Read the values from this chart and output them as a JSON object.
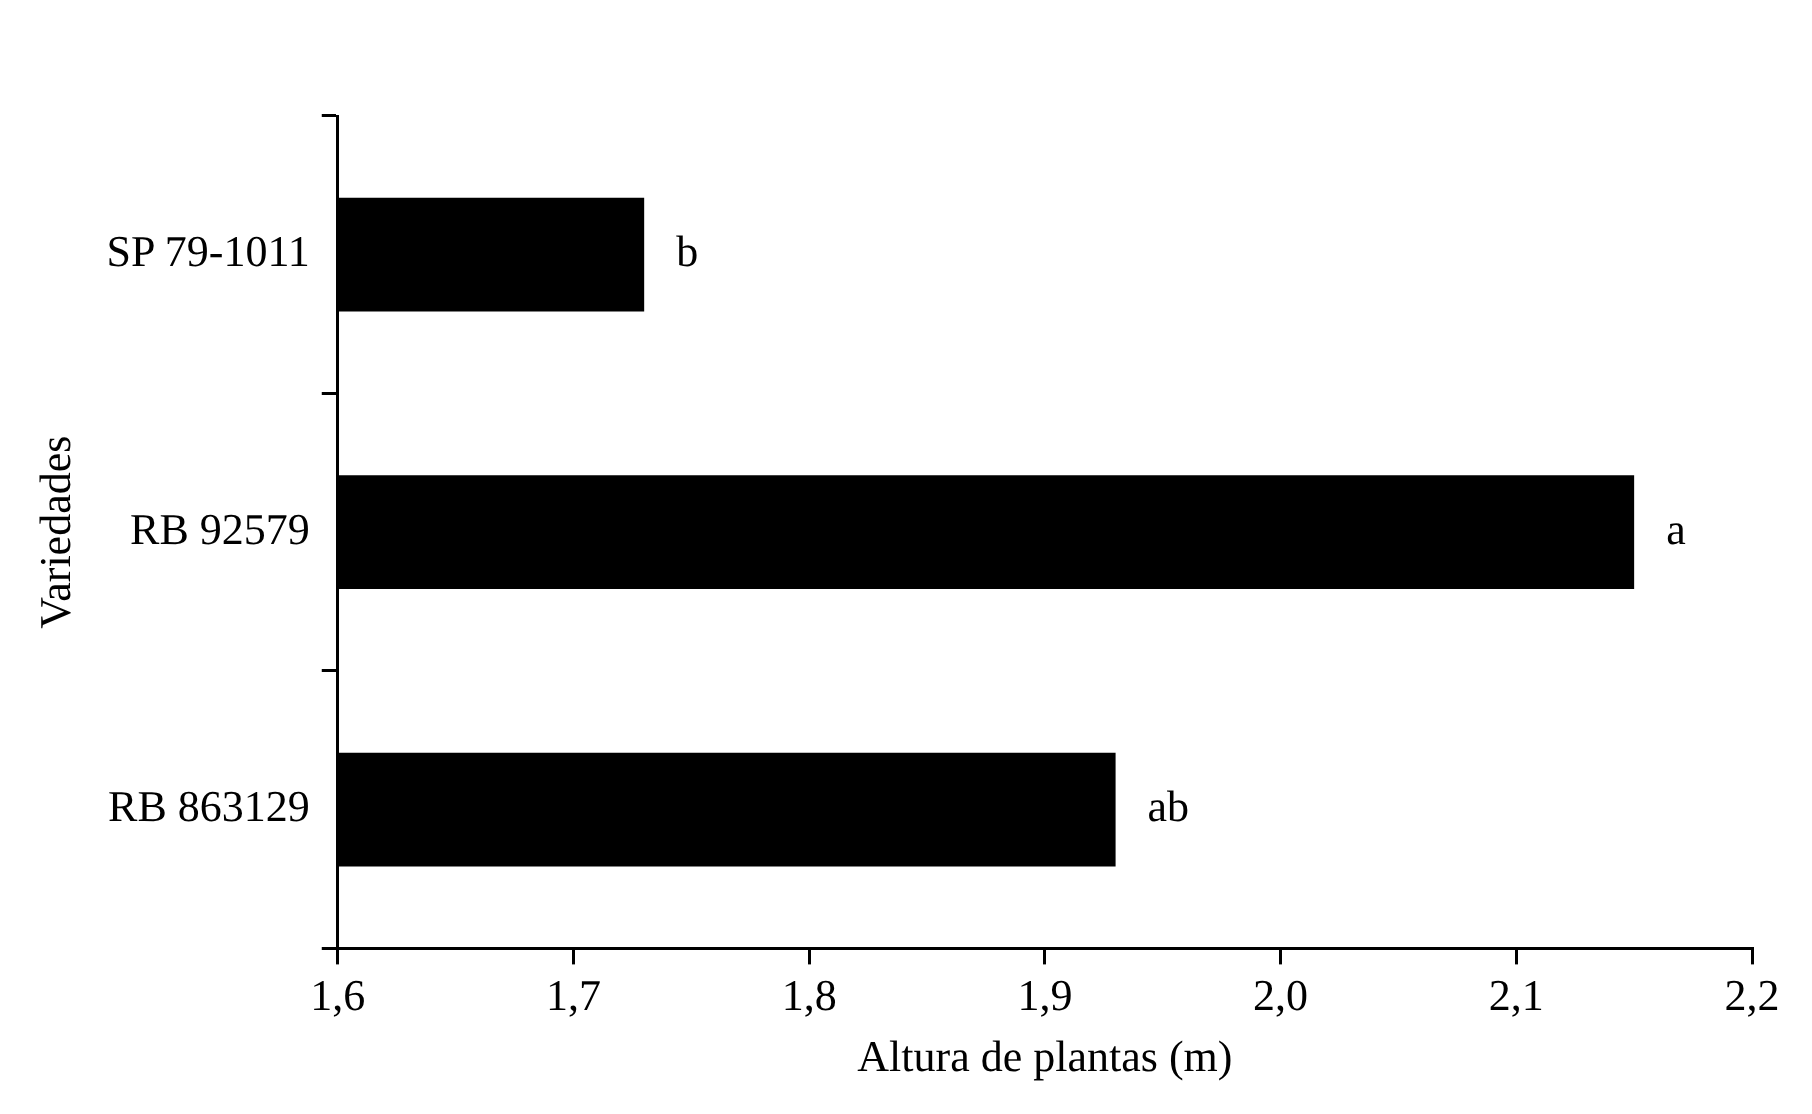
{
  "chart_data": {
    "type": "bar",
    "orientation": "horizontal",
    "xlabel": "Altura de plantas (m)",
    "ylabel": "Variedades",
    "categories": [
      "SP 79-1011",
      "RB 92579",
      "RB 863129"
    ],
    "values": [
      1.73,
      2.15,
      1.93
    ],
    "color": "#000000",
    "xlim": [
      1.6,
      2.2
    ],
    "xticks": [
      {
        "value": 1.6,
        "label": "1,6"
      },
      {
        "value": 1.7,
        "label": "1,7"
      },
      {
        "value": 1.8,
        "label": "1,8"
      },
      {
        "value": 1.9,
        "label": "1,9"
      },
      {
        "value": 2.0,
        "label": "2,0"
      },
      {
        "value": 2.1,
        "label": "2,1"
      },
      {
        "value": 2.2,
        "label": "2,2"
      }
    ],
    "annotations": [
      {
        "text": "b",
        "x": 1.73,
        "y": "SP 79-1011"
      },
      {
        "text": "a",
        "x": 2.15,
        "y": "RB 92579"
      },
      {
        "text": "ab",
        "x": 1.93,
        "y": "RB 863129"
      }
    ],
    "grid": false,
    "legend": false
  }
}
